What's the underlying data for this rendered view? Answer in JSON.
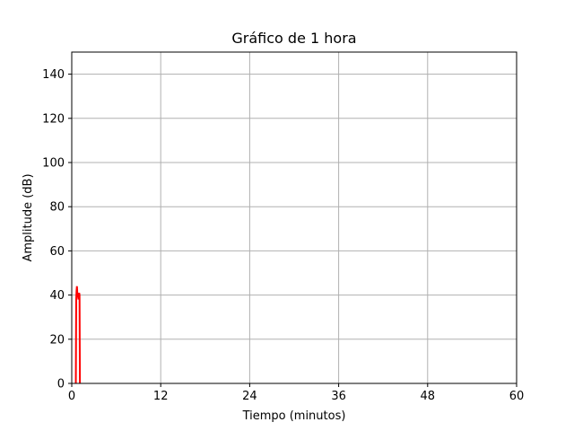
{
  "chart_data": {
    "type": "line",
    "title": "Gráfico de 1 hora",
    "xlabel": "Tiempo (minutos)",
    "ylabel": "Amplitude (dB)",
    "xlim": [
      0,
      60
    ],
    "ylim": [
      0,
      150
    ],
    "xticks": [
      0,
      12,
      24,
      36,
      48,
      60
    ],
    "yticks": [
      0,
      20,
      40,
      60,
      80,
      100,
      120,
      140
    ],
    "grid": true,
    "series": [
      {
        "color": "#ff0000",
        "x": [
          0.55,
          0.6,
          0.65,
          0.7,
          0.75,
          0.8,
          0.85,
          0.9,
          0.95,
          1.0,
          1.05,
          1.1
        ],
        "y": [
          0,
          38,
          42,
          44,
          41,
          39,
          40,
          38,
          40,
          41,
          40,
          0
        ]
      }
    ]
  }
}
